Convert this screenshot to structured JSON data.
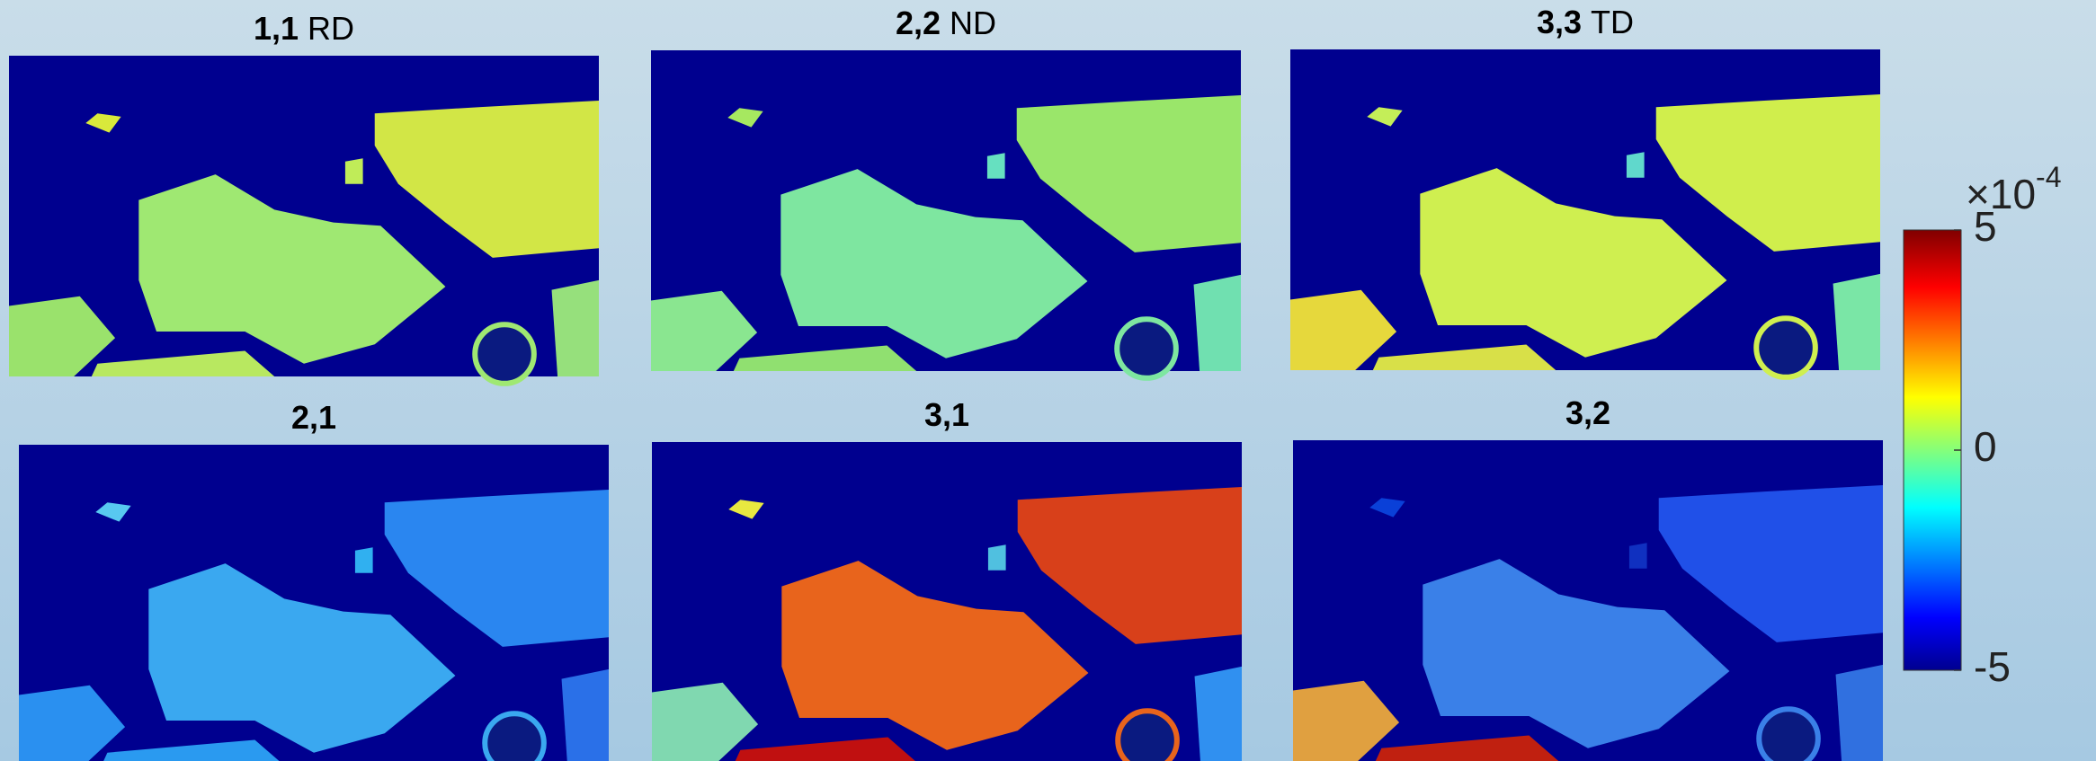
{
  "chart_data": {
    "type": "heatmap",
    "panels": [
      {
        "label": "1,1",
        "direction": "RD"
      },
      {
        "label": "2,2",
        "direction": "ND"
      },
      {
        "label": "3,3",
        "direction": "TD"
      },
      {
        "label": "2,1"
      },
      {
        "label": "3,1"
      },
      {
        "label": "3,2"
      }
    ],
    "colorbar": {
      "lim": [
        -5,
        5
      ],
      "ticks": [
        -5,
        0,
        5
      ],
      "multiplier": "×10",
      "multiplier_exponent": "-4"
    }
  }
}
